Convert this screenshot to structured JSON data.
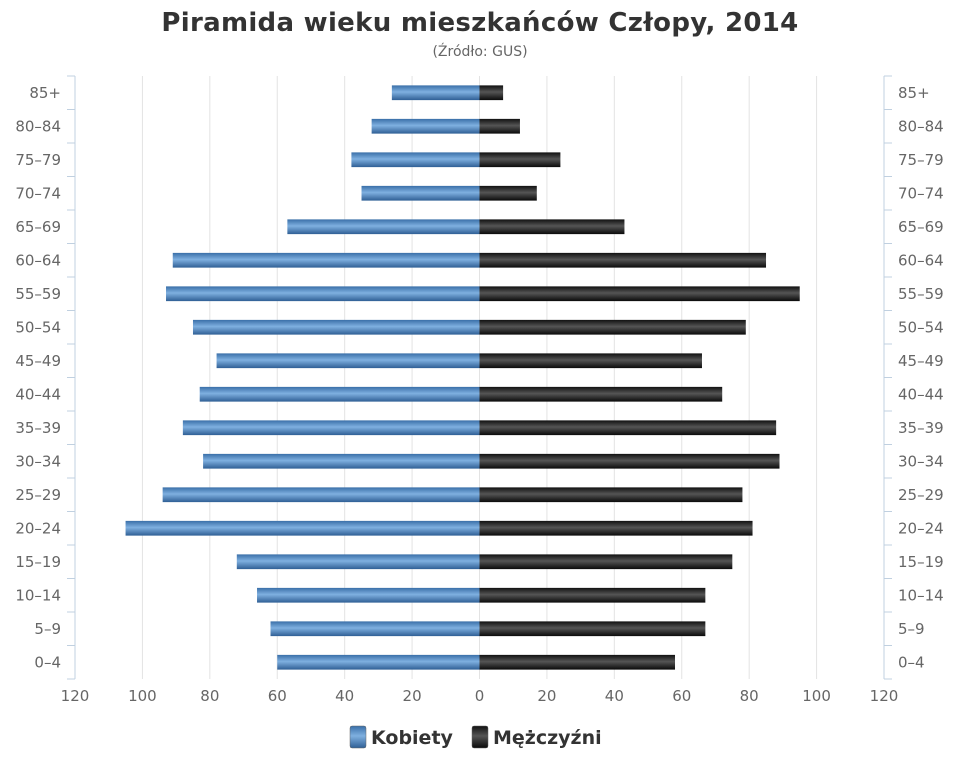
{
  "chart_data": {
    "type": "bar",
    "orientation": "horizontal",
    "title": "Piramida wieku mieszkańców Człopy, 2014",
    "subtitle": "(Źródło: GUS)",
    "categories": [
      "85+",
      "80–84",
      "75–79",
      "70–74",
      "65–69",
      "60–64",
      "55–59",
      "50–54",
      "45–49",
      "40–44",
      "35–39",
      "30–34",
      "25–29",
      "20–24",
      "15–19",
      "10–14",
      "5–9",
      "0–4"
    ],
    "series": [
      {
        "name": "Kobiety",
        "color": "#4a86c5",
        "values": [
          26,
          32,
          38,
          35,
          57,
          91,
          93,
          85,
          78,
          83,
          88,
          82,
          94,
          105,
          72,
          66,
          62,
          60
        ]
      },
      {
        "name": "Mężczyźni",
        "color": "#222222",
        "values": [
          7,
          12,
          24,
          17,
          43,
          85,
          95,
          79,
          66,
          72,
          88,
          89,
          78,
          81,
          75,
          67,
          67,
          58
        ]
      }
    ],
    "xlim": [
      -120,
      120
    ],
    "x_tick_labels": [
      "120",
      "100",
      "80",
      "60",
      "40",
      "20",
      "0",
      "20",
      "40",
      "60",
      "80",
      "100",
      "120"
    ],
    "grid": true,
    "legend_position": "bottom-center"
  }
}
